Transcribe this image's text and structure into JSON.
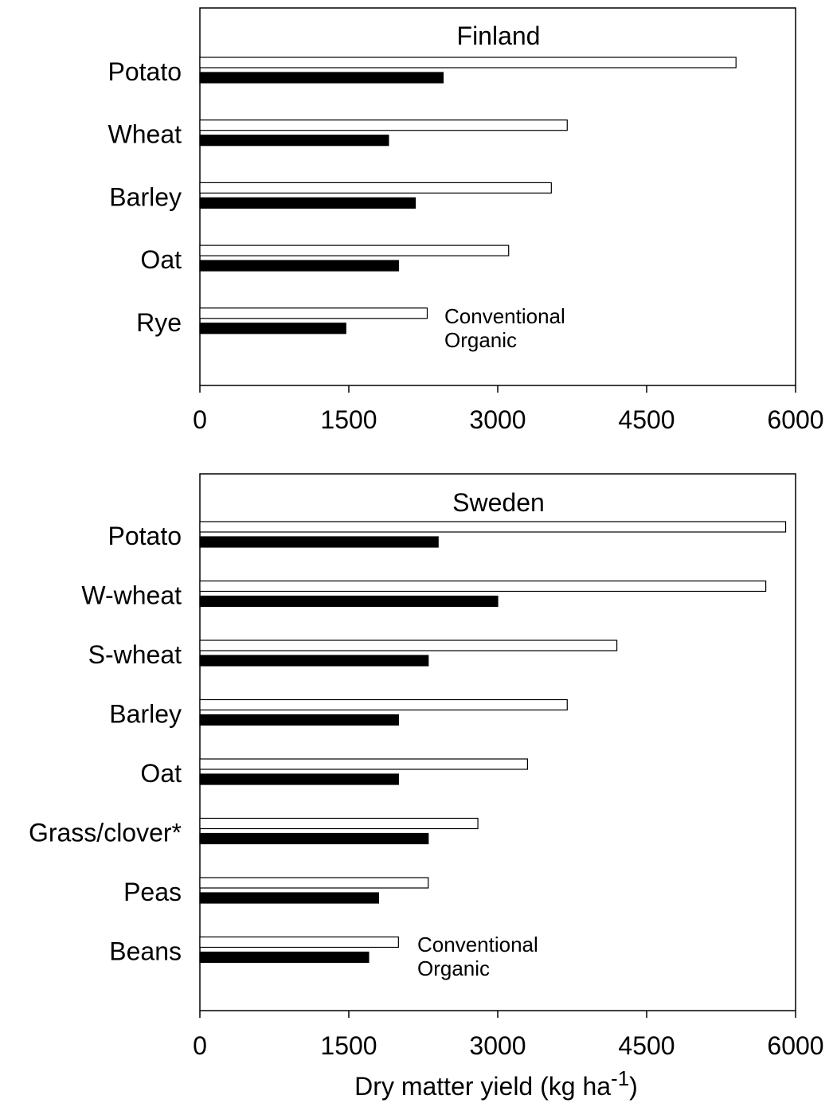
{
  "chart_data": [
    {
      "type": "bar",
      "orientation": "horizontal",
      "title": "Finland",
      "categories": [
        "Potato",
        "Wheat",
        "Barley",
        "Oat",
        "Rye"
      ],
      "series": [
        {
          "name": "Conventional",
          "color": "#ffffff",
          "values": [
            5400,
            3700,
            3540,
            3110,
            2290
          ]
        },
        {
          "name": "Organic",
          "color": "#000000",
          "values": [
            2450,
            1900,
            2170,
            2000,
            1470
          ]
        }
      ],
      "xlim": [
        0,
        6000
      ],
      "xticks": [
        "0",
        "1500",
        "3000",
        "4500",
        "6000"
      ],
      "legend": [
        "Conventional",
        "Organic"
      ],
      "legend_placement": "bottom-center",
      "grid": false
    },
    {
      "type": "bar",
      "orientation": "horizontal",
      "title": "Sweden",
      "categories": [
        "Potato",
        "W-wheat",
        "S-wheat",
        "Barley",
        "Oat",
        "Grass/clover*",
        "Peas",
        "Beans"
      ],
      "series": [
        {
          "name": "Conventional",
          "color": "#ffffff",
          "values": [
            5900,
            5700,
            4200,
            3700,
            3300,
            2800,
            2300,
            2000
          ]
        },
        {
          "name": "Organic",
          "color": "#000000",
          "values": [
            2400,
            3000,
            2300,
            2000,
            2000,
            2300,
            1800,
            1700
          ]
        }
      ],
      "xlim": [
        0,
        6000
      ],
      "xticks": [
        "0",
        "1500",
        "3000",
        "4500",
        "6000"
      ],
      "legend": [
        "Conventional",
        "Organic"
      ],
      "legend_placement": "bottom-center",
      "grid": false,
      "xlabel_main": "Dry matter yield (kg ha",
      "xlabel_sup": "-1",
      "xlabel_tail": ")"
    }
  ]
}
